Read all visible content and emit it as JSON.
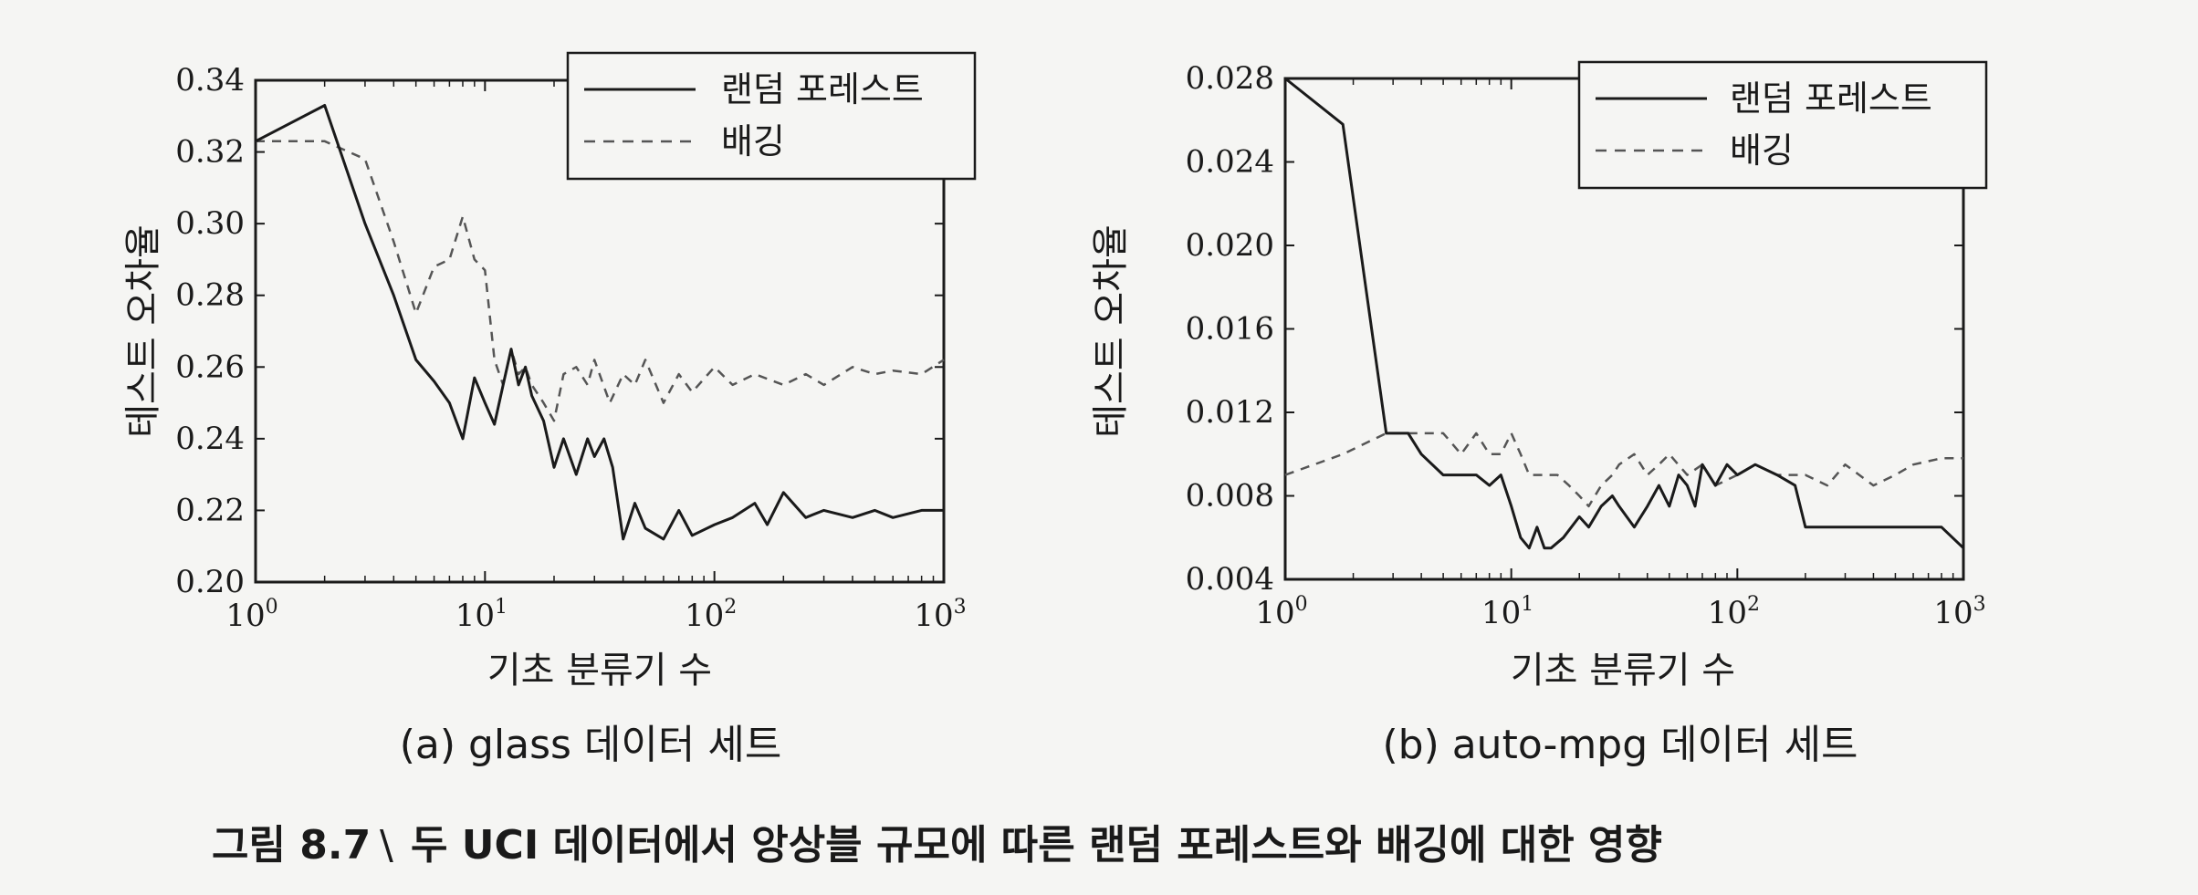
{
  "figure": {
    "caption_label": "그림 8.7",
    "caption_sep": "\\",
    "caption_text": "두 UCI 데이터에서 앙상블 규모에 따른 랜덤 포레스트와 배깅에 대한 영향"
  },
  "chart_data": [
    {
      "type": "line",
      "subcaption": "(a) glass 데이터 세트",
      "xlabel": "기초 분류기 수",
      "ylabel": "테스트 오차율",
      "xscale": "log",
      "xlim": [
        1,
        1000
      ],
      "ylim": [
        0.2,
        0.34
      ],
      "xticks": [
        1,
        10,
        100,
        1000
      ],
      "xtick_labels": [
        {
          "base": "10",
          "exp": "0"
        },
        {
          "base": "10",
          "exp": "1"
        },
        {
          "base": "10",
          "exp": "2"
        },
        {
          "base": "10",
          "exp": "3"
        }
      ],
      "yticks": [
        0.2,
        0.22,
        0.24,
        0.26,
        0.28,
        0.3,
        0.32,
        0.34
      ],
      "ytick_labels": [
        "0.20",
        "0.22",
        "0.24",
        "0.26",
        "0.28",
        "0.30",
        "0.32",
        "0.34"
      ],
      "legend_position": "top-right",
      "series": [
        {
          "name": "랜덤 포레스트",
          "style": "solid",
          "color": "#1a1a1a",
          "x": [
            1,
            2,
            3,
            4,
            5,
            6,
            7,
            8,
            9,
            10,
            11,
            12,
            13,
            14,
            15,
            16,
            18,
            20,
            22,
            25,
            28,
            30,
            33,
            36,
            40,
            45,
            50,
            60,
            70,
            80,
            100,
            120,
            150,
            170,
            200,
            250,
            300,
            400,
            500,
            600,
            800,
            1000
          ],
          "y": [
            0.323,
            0.333,
            0.3,
            0.28,
            0.262,
            0.256,
            0.25,
            0.24,
            0.257,
            0.25,
            0.244,
            0.255,
            0.265,
            0.255,
            0.26,
            0.252,
            0.245,
            0.232,
            0.24,
            0.23,
            0.24,
            0.235,
            0.24,
            0.232,
            0.212,
            0.222,
            0.215,
            0.212,
            0.22,
            0.213,
            0.216,
            0.218,
            0.222,
            0.216,
            0.225,
            0.218,
            0.22,
            0.218,
            0.22,
            0.218,
            0.22,
            0.22
          ]
        },
        {
          "name": "배깅",
          "style": "dashed",
          "color": "#555555",
          "x": [
            1,
            2,
            3,
            4,
            5,
            6,
            7,
            8,
            9,
            10,
            11,
            12,
            13,
            14,
            15,
            16,
            18,
            20,
            22,
            25,
            28,
            30,
            35,
            40,
            45,
            50,
            60,
            70,
            80,
            100,
            120,
            150,
            200,
            250,
            300,
            400,
            500,
            600,
            800,
            1000
          ],
          "y": [
            0.323,
            0.323,
            0.318,
            0.295,
            0.275,
            0.288,
            0.29,
            0.302,
            0.29,
            0.287,
            0.262,
            0.255,
            0.265,
            0.258,
            0.26,
            0.255,
            0.25,
            0.245,
            0.258,
            0.26,
            0.255,
            0.262,
            0.25,
            0.258,
            0.255,
            0.262,
            0.25,
            0.258,
            0.253,
            0.26,
            0.255,
            0.258,
            0.255,
            0.258,
            0.255,
            0.26,
            0.258,
            0.259,
            0.258,
            0.262
          ]
        }
      ]
    },
    {
      "type": "line",
      "subcaption": "(b) auto-mpg 데이터 세트",
      "xlabel": "기초 분류기 수",
      "ylabel": "테스트 오차율",
      "xscale": "log",
      "xlim": [
        1,
        1000
      ],
      "ylim": [
        0.004,
        0.028
      ],
      "xticks": [
        1,
        10,
        100,
        1000
      ],
      "xtick_labels": [
        {
          "base": "10",
          "exp": "0"
        },
        {
          "base": "10",
          "exp": "1"
        },
        {
          "base": "10",
          "exp": "2"
        },
        {
          "base": "10",
          "exp": "3"
        }
      ],
      "yticks": [
        0.004,
        0.008,
        0.012,
        0.016,
        0.02,
        0.024,
        0.028
      ],
      "ytick_labels": [
        "0.004",
        "0.008",
        "0.012",
        "0.016",
        "0.020",
        "0.024",
        "0.028"
      ],
      "legend_position": "top-right",
      "series": [
        {
          "name": "랜덤 포레스트",
          "style": "solid",
          "color": "#1a1a1a",
          "x": [
            1,
            1.8,
            2.8,
            3.5,
            4,
            5,
            6,
            7,
            8,
            9,
            10,
            11,
            12,
            13,
            14,
            15,
            17,
            20,
            22,
            25,
            28,
            30,
            35,
            40,
            45,
            50,
            55,
            60,
            65,
            70,
            80,
            90,
            100,
            120,
            150,
            180,
            200,
            250,
            300,
            400,
            500,
            600,
            800,
            1000
          ],
          "y": [
            0.028,
            0.0258,
            0.011,
            0.011,
            0.01,
            0.009,
            0.009,
            0.009,
            0.0085,
            0.009,
            0.0075,
            0.006,
            0.0055,
            0.0065,
            0.0055,
            0.0055,
            0.006,
            0.007,
            0.0065,
            0.0075,
            0.008,
            0.0075,
            0.0065,
            0.0075,
            0.0085,
            0.0075,
            0.009,
            0.0085,
            0.0075,
            0.0095,
            0.0085,
            0.0095,
            0.009,
            0.0095,
            0.009,
            0.0085,
            0.0065,
            0.0065,
            0.0065,
            0.0065,
            0.0065,
            0.0065,
            0.0065,
            0.0055
          ]
        },
        {
          "name": "배깅",
          "style": "dashed",
          "color": "#555555",
          "x": [
            1,
            1.8,
            2.8,
            3.5,
            4,
            5,
            6,
            7,
            8,
            9,
            10,
            11,
            12,
            14,
            16,
            18,
            20,
            22,
            25,
            28,
            30,
            35,
            40,
            45,
            50,
            60,
            70,
            80,
            100,
            120,
            150,
            200,
            250,
            300,
            400,
            500,
            600,
            800,
            1000
          ],
          "y": [
            0.009,
            0.01,
            0.011,
            0.011,
            0.011,
            0.011,
            0.01,
            0.011,
            0.01,
            0.01,
            0.011,
            0.01,
            0.009,
            0.009,
            0.009,
            0.0085,
            0.008,
            0.0075,
            0.0085,
            0.009,
            0.0095,
            0.01,
            0.009,
            0.0095,
            0.01,
            0.009,
            0.0095,
            0.0085,
            0.009,
            0.0095,
            0.009,
            0.009,
            0.0085,
            0.0095,
            0.0085,
            0.009,
            0.0095,
            0.0098,
            0.0098
          ]
        }
      ]
    }
  ]
}
